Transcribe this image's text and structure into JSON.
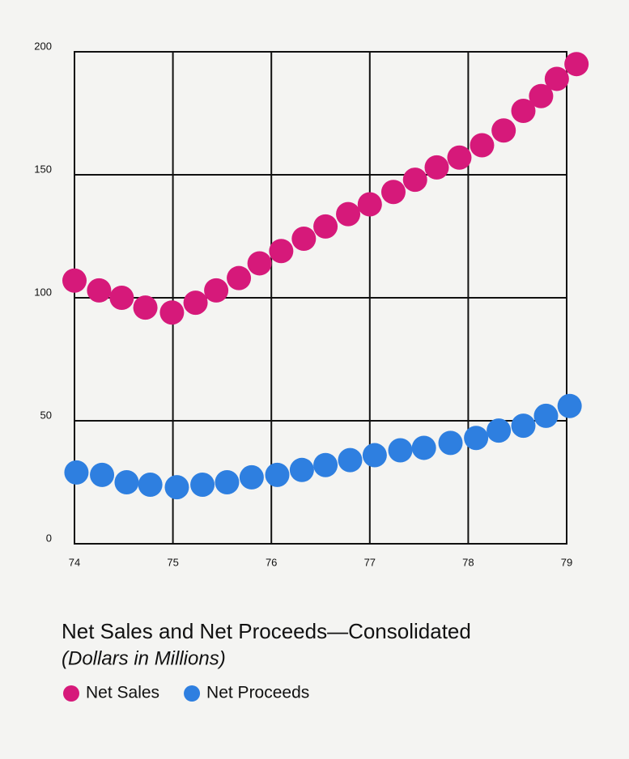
{
  "chart_data": {
    "type": "scatter",
    "title": "Net Sales and Net Proceeds—Consolidated",
    "subtitle": "(Dollars in Millions)",
    "xlim": [
      74,
      79
    ],
    "xticks": [
      74,
      75,
      76,
      77,
      78,
      79
    ],
    "ylim": [
      0,
      200
    ],
    "yticks": [
      0,
      50,
      100,
      150,
      200
    ],
    "grid": true,
    "series": [
      {
        "name": "Net Sales",
        "color": "#d6197a",
        "x": [
          74.0,
          74.25,
          74.48,
          74.72,
          74.99,
          75.23,
          75.44,
          75.67,
          75.88,
          76.1,
          76.33,
          76.55,
          76.78,
          77.0,
          77.24,
          77.46,
          77.68,
          77.91,
          78.14,
          78.36,
          78.56,
          78.74,
          78.9,
          79.1
        ],
        "values": [
          107,
          103,
          100,
          96,
          94,
          98,
          103,
          108,
          114,
          119,
          124,
          129,
          134,
          138,
          143,
          148,
          153,
          157,
          162,
          168,
          176,
          182,
          189,
          195
        ]
      },
      {
        "name": "Net Proceeds",
        "color": "#2e7fe0",
        "x": [
          74.02,
          74.28,
          74.53,
          74.77,
          75.04,
          75.3,
          75.55,
          75.8,
          76.06,
          76.31,
          76.55,
          76.8,
          77.05,
          77.31,
          77.55,
          77.82,
          78.08,
          78.31,
          78.56,
          78.79,
          79.03
        ],
        "values": [
          29,
          28,
          25,
          24,
          23,
          24,
          25,
          27,
          28,
          30,
          32,
          34,
          36,
          38,
          39,
          41,
          43,
          46,
          48,
          52,
          56
        ]
      }
    ]
  }
}
